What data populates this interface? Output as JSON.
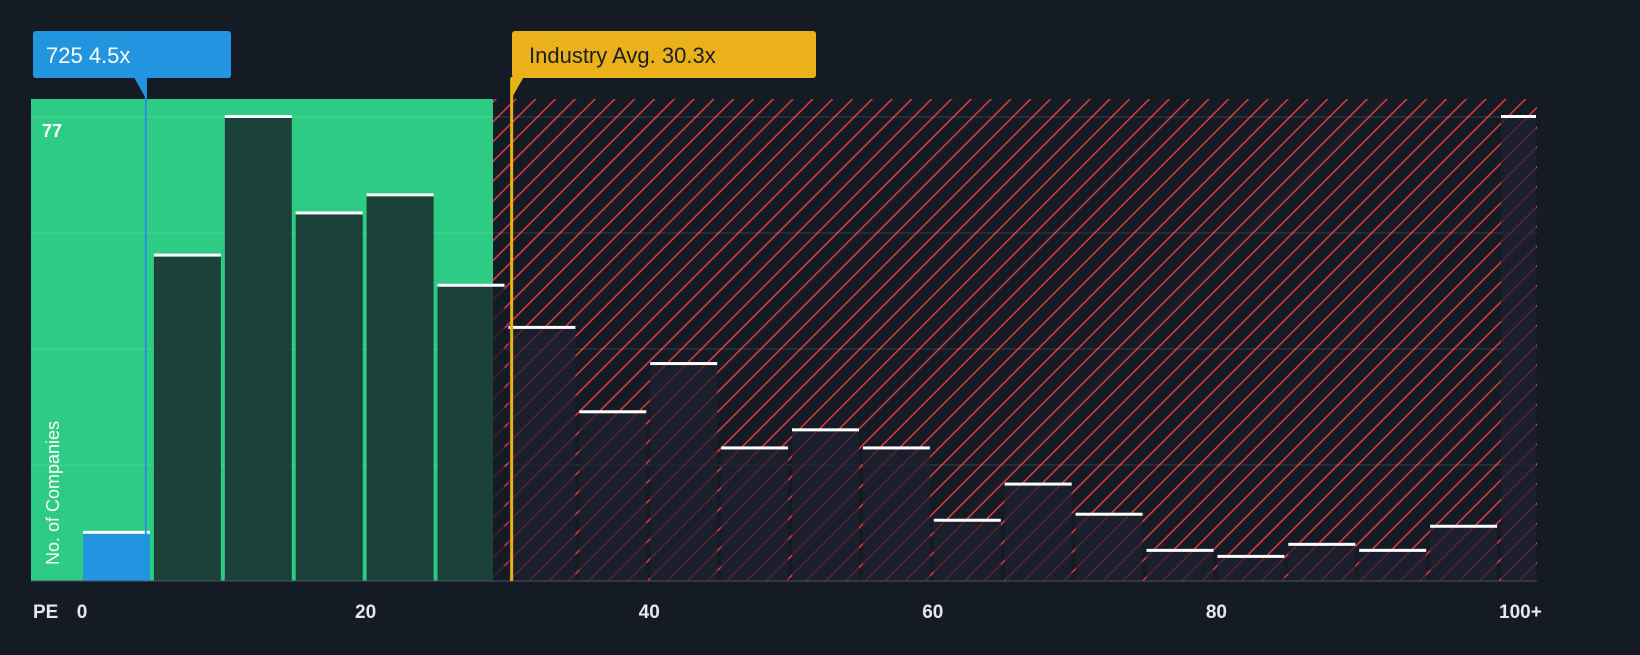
{
  "chart_data": {
    "type": "bar",
    "title": "",
    "xlabel": "PE",
    "ylabel": "No. of Companies",
    "x_ticks": [
      "0",
      "20",
      "40",
      "60",
      "80",
      "100+"
    ],
    "y_max_label": "77",
    "ylim": [
      0,
      77
    ],
    "bin_width": 5,
    "categories": [
      "0-5",
      "5-10",
      "10-15",
      "15-20",
      "20-25",
      "25-30",
      "30-35",
      "35-40",
      "40-45",
      "45-50",
      "50-55",
      "55-60",
      "60-65",
      "65-70",
      "70-75",
      "75-80",
      "80-85",
      "85-90",
      "90-95",
      "95-100",
      "100+"
    ],
    "values": [
      8,
      54,
      77,
      61,
      64,
      49,
      42,
      28,
      36,
      22,
      25,
      22,
      10,
      16,
      11,
      5,
      4,
      6,
      5,
      9,
      77
    ],
    "company": {
      "label": "725 4.5x",
      "value": 4.5,
      "color": "#2394e0"
    },
    "industry": {
      "label": "Industry Avg. 30.3x",
      "value": 30.3,
      "color": "#ebb11a"
    },
    "colors": {
      "background": "#151b24",
      "undervalued": "#2ecb84",
      "overvalued_hatch": "#e0393e"
    }
  }
}
